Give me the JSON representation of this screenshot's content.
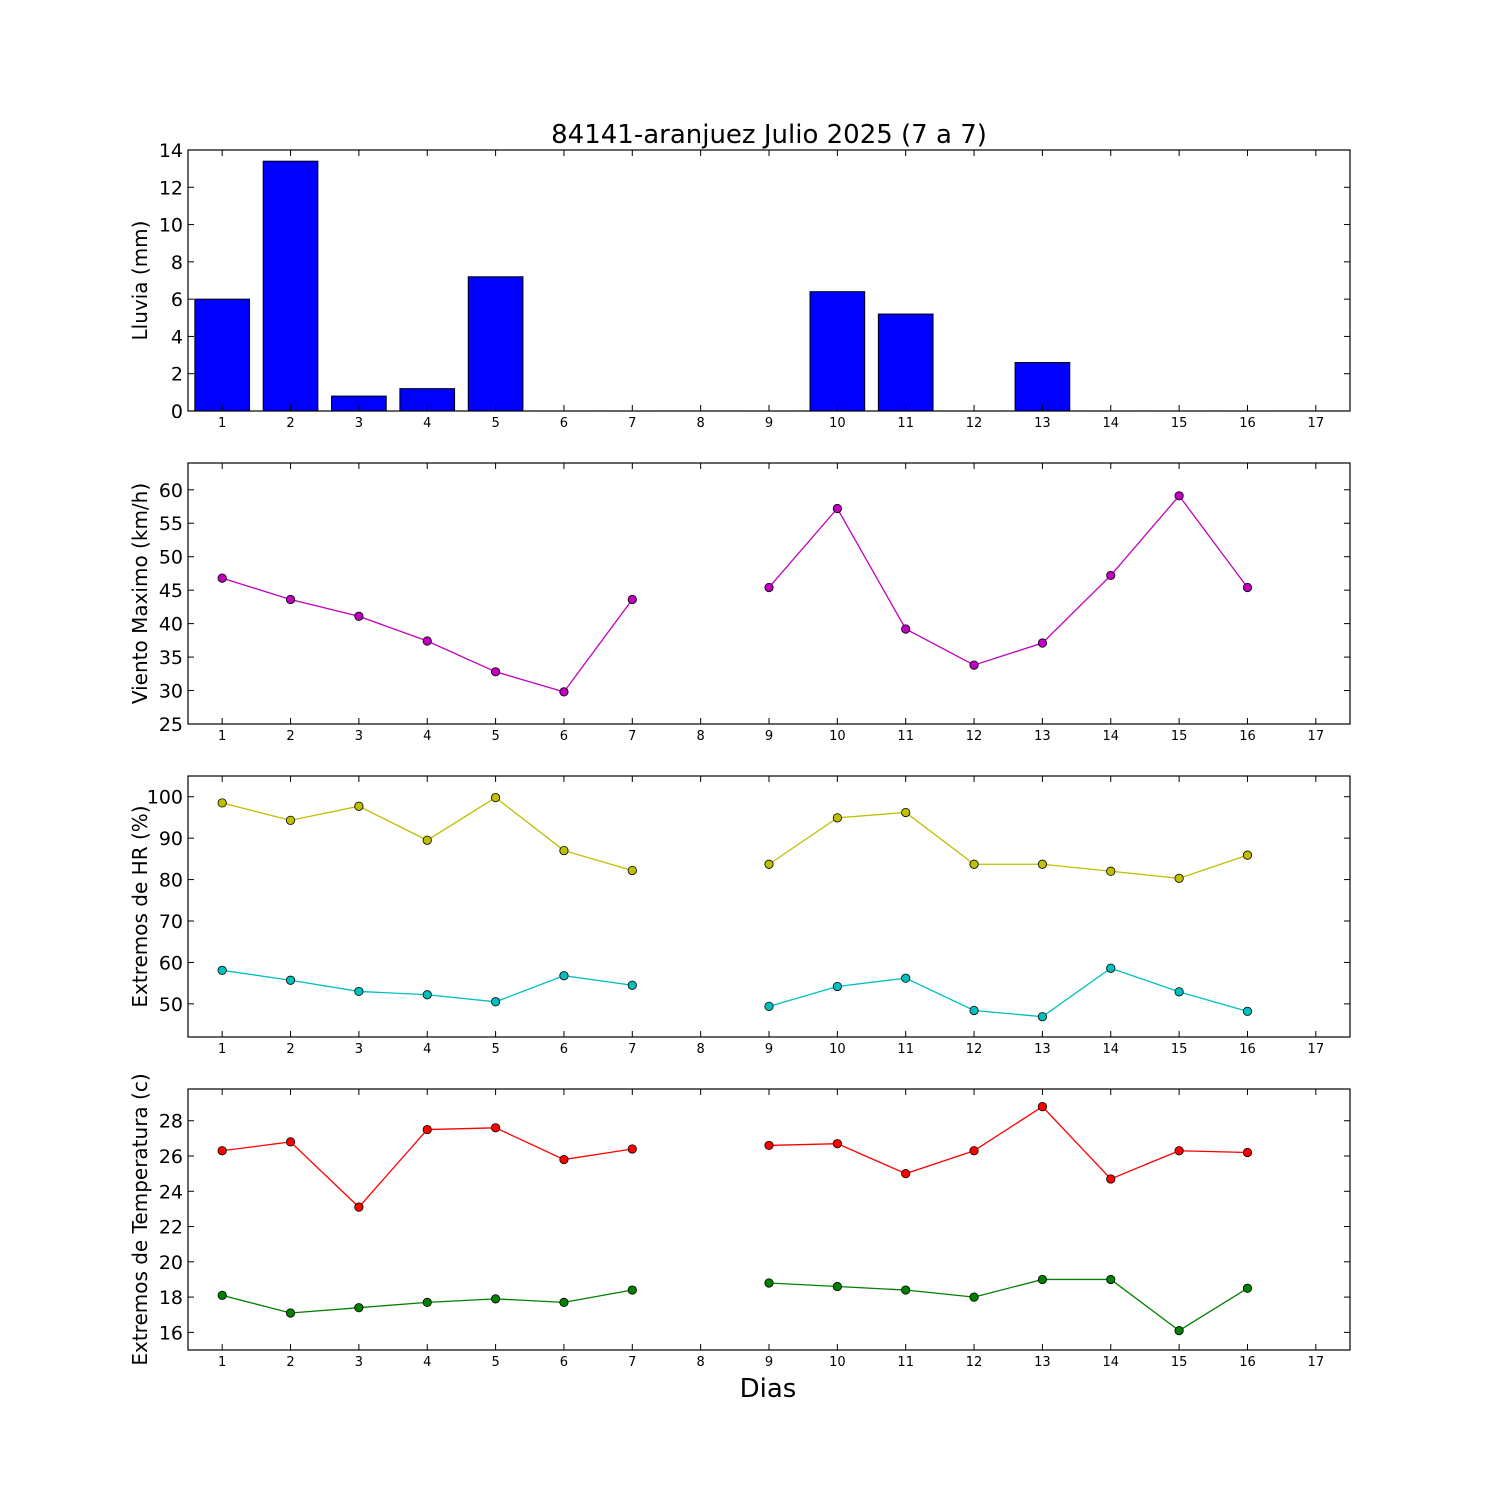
{
  "title": "84141-aranjuez Julio 2025  (7 a 7)",
  "xlabel": "Dias",
  "chart_data": [
    {
      "type": "bar",
      "ylabel": "Lluvia (mm)",
      "x": [
        1,
        2,
        3,
        4,
        5,
        6,
        7,
        8,
        9,
        10,
        11,
        12,
        13,
        14,
        15,
        16,
        17
      ],
      "xlim": [
        0.5,
        17.5
      ],
      "ylim": [
        0,
        14
      ],
      "yticks": [
        0,
        2,
        4,
        6,
        8,
        10,
        12,
        14
      ],
      "bar_color": "#0000ff",
      "series": [
        {
          "values": [
            6.0,
            13.4,
            0.8,
            1.2,
            7.2,
            0,
            0,
            null,
            0,
            6.4,
            5.2,
            0,
            2.6,
            0,
            0,
            0,
            null
          ]
        }
      ]
    },
    {
      "type": "line",
      "ylabel": "Viento Maximo (km/h)",
      "x": [
        1,
        2,
        3,
        4,
        5,
        6,
        7,
        8,
        9,
        10,
        11,
        12,
        13,
        14,
        15,
        16,
        17
      ],
      "xlim": [
        0.5,
        17.5
      ],
      "ylim": [
        25,
        64
      ],
      "yticks": [
        25,
        30,
        35,
        40,
        45,
        50,
        55,
        60
      ],
      "series": [
        {
          "color": "#bf00bf",
          "values": [
            46.8,
            43.6,
            41.1,
            37.4,
            32.8,
            29.8,
            43.6,
            null,
            45.4,
            57.2,
            39.2,
            33.8,
            37.1,
            47.2,
            59.1,
            45.4,
            null
          ]
        }
      ]
    },
    {
      "type": "line",
      "ylabel": "Extremos de HR (%)",
      "x": [
        1,
        2,
        3,
        4,
        5,
        6,
        7,
        8,
        9,
        10,
        11,
        12,
        13,
        14,
        15,
        16,
        17
      ],
      "xlim": [
        0.5,
        17.5
      ],
      "ylim": [
        42,
        105
      ],
      "yticks": [
        50,
        60,
        70,
        80,
        90,
        100
      ],
      "series": [
        {
          "color": "#bfbf00",
          "values": [
            98.5,
            94.3,
            97.7,
            89.5,
            99.8,
            87.0,
            82.2,
            null,
            83.7,
            94.9,
            96.2,
            83.7,
            83.7,
            82.0,
            80.3,
            85.9,
            null
          ]
        },
        {
          "color": "#00bfbf",
          "values": [
            58.1,
            55.7,
            53.0,
            52.2,
            50.5,
            56.8,
            54.5,
            null,
            49.4,
            54.2,
            56.2,
            48.4,
            46.9,
            58.6,
            52.9,
            48.2,
            null
          ]
        }
      ]
    },
    {
      "type": "line",
      "ylabel": "Extremos de Temperatura (c)",
      "x": [
        1,
        2,
        3,
        4,
        5,
        6,
        7,
        8,
        9,
        10,
        11,
        12,
        13,
        14,
        15,
        16,
        17
      ],
      "xlim": [
        0.5,
        17.5
      ],
      "ylim": [
        15,
        29.8
      ],
      "yticks": [
        16,
        18,
        20,
        22,
        24,
        26,
        28
      ],
      "series": [
        {
          "color": "#ff0000",
          "values": [
            26.3,
            26.8,
            23.1,
            27.5,
            27.6,
            25.8,
            26.4,
            null,
            26.6,
            26.7,
            25.0,
            26.3,
            28.8,
            24.7,
            26.3,
            26.2,
            null
          ]
        },
        {
          "color": "#008000",
          "values": [
            18.1,
            17.1,
            17.4,
            17.7,
            17.9,
            17.7,
            18.4,
            null,
            18.8,
            18.6,
            18.4,
            18.0,
            19.0,
            19.0,
            16.1,
            18.5,
            null
          ]
        }
      ]
    }
  ]
}
